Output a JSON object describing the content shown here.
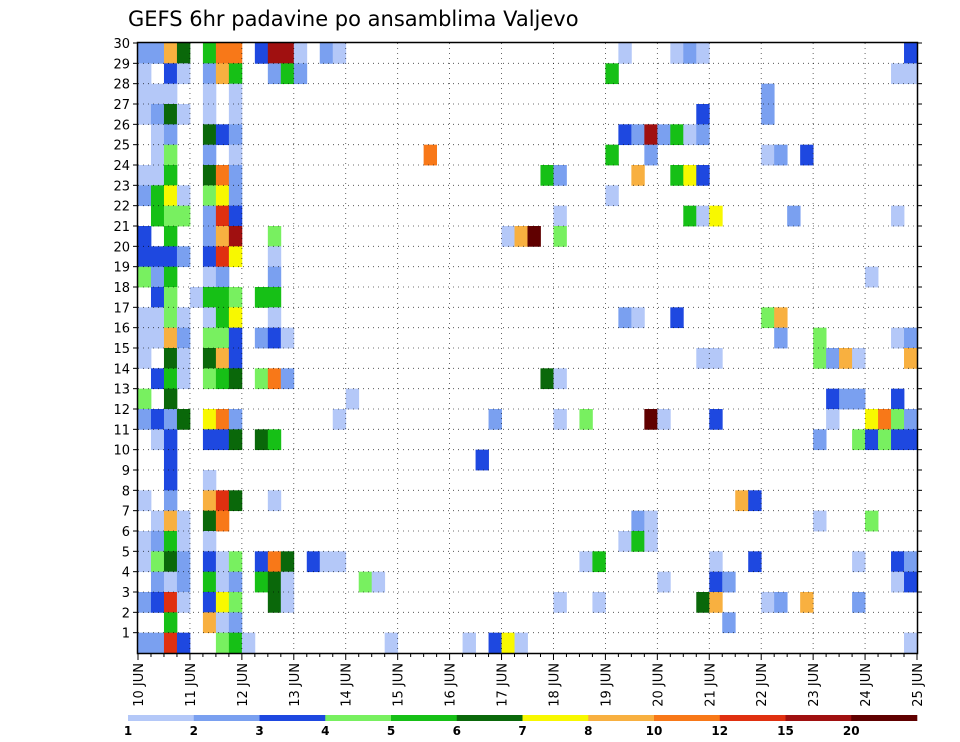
{
  "chart_data": {
    "type": "heatmap",
    "title": "GEFS 6hr padavine po ansamblima Valjevo",
    "xlabel": "",
    "ylabel": "",
    "x_ticks": [
      "10 JUN",
      "11 JUN",
      "12 JUN",
      "13 JUN",
      "14 JUN",
      "15 JUN",
      "16 JUN",
      "17 JUN",
      "18 JUN",
      "19 JUN",
      "20 JUN",
      "21 JUN",
      "22 JUN",
      "23 JUN",
      "24 JUN",
      "25 JUN"
    ],
    "y_ticks": [
      "1",
      "2",
      "3",
      "4",
      "5",
      "6",
      "7",
      "8",
      "9",
      "10",
      "11",
      "12",
      "13",
      "14",
      "15",
      "16",
      "17",
      "18",
      "19",
      "20",
      "21",
      "22",
      "23",
      "24",
      "25",
      "26",
      "27",
      "28",
      "29",
      "30"
    ],
    "xlim": [
      0,
      60
    ],
    "ylim": [
      0,
      30
    ],
    "grid": true,
    "legend": {
      "placement": "bottom",
      "labels": [
        "1",
        "2",
        "3",
        "4",
        "5",
        "6",
        "7",
        "8",
        "10",
        "12",
        "15",
        "20"
      ],
      "colors": [
        "#b4c8f8",
        "#7aa0f0",
        "#1e48e0",
        "#78f060",
        "#16c016",
        "#0a680a",
        "#f8f800",
        "#f8b040",
        "#f87818",
        "#e03010",
        "#a01010",
        "#600000"
      ]
    },
    "level_colors": {
      "1": "#b4c8f8",
      "2": "#7aa0f0",
      "3": "#1e48e0",
      "4": "#78f060",
      "5": "#16c016",
      "6": "#0a680a",
      "7": "#f8f800",
      "8": "#f8b040",
      "10": "#f87818",
      "12": "#e03010",
      "15": "#a01010",
      "20": "#600000"
    },
    "cells_note": "each cell: [time_step (6h, 0 = 10 JUN 00Z), member (1-30), precipitation level mm]",
    "cells": [
      [
        0,
        30,
        2
      ],
      [
        1,
        30,
        2
      ],
      [
        2,
        30,
        8
      ],
      [
        3,
        30,
        6
      ],
      [
        5,
        30,
        5
      ],
      [
        6,
        30,
        10
      ],
      [
        7,
        30,
        10
      ],
      [
        9,
        30,
        3
      ],
      [
        10,
        30,
        15
      ],
      [
        11,
        30,
        15
      ],
      [
        12,
        30,
        1
      ],
      [
        14,
        30,
        2
      ],
      [
        15,
        30,
        1
      ],
      [
        37,
        30,
        1
      ],
      [
        41,
        30,
        1
      ],
      [
        42,
        30,
        2
      ],
      [
        43,
        30,
        1
      ],
      [
        59,
        30,
        3
      ],
      [
        0,
        29,
        1
      ],
      [
        2,
        29,
        3
      ],
      [
        3,
        29,
        1
      ],
      [
        5,
        29,
        2
      ],
      [
        6,
        29,
        8
      ],
      [
        7,
        29,
        5
      ],
      [
        10,
        29,
        2
      ],
      [
        11,
        29,
        5
      ],
      [
        12,
        29,
        2
      ],
      [
        36,
        29,
        5
      ],
      [
        58,
        29,
        1
      ],
      [
        59,
        29,
        1
      ],
      [
        0,
        28,
        1
      ],
      [
        1,
        28,
        1
      ],
      [
        2,
        28,
        1
      ],
      [
        5,
        28,
        1
      ],
      [
        7,
        28,
        1
      ],
      [
        48,
        28,
        2
      ],
      [
        0,
        27,
        1
      ],
      [
        1,
        27,
        2
      ],
      [
        2,
        27,
        6
      ],
      [
        3,
        27,
        1
      ],
      [
        5,
        27,
        1
      ],
      [
        7,
        27,
        1
      ],
      [
        43,
        27,
        3
      ],
      [
        48,
        27,
        2
      ],
      [
        1,
        26,
        1
      ],
      [
        2,
        26,
        2
      ],
      [
        5,
        26,
        6
      ],
      [
        6,
        26,
        3
      ],
      [
        7,
        26,
        2
      ],
      [
        37,
        26,
        3
      ],
      [
        38,
        26,
        2
      ],
      [
        39,
        26,
        15
      ],
      [
        40,
        26,
        2
      ],
      [
        41,
        26,
        5
      ],
      [
        42,
        26,
        1
      ],
      [
        43,
        26,
        2
      ],
      [
        1,
        25,
        1
      ],
      [
        2,
        25,
        4
      ],
      [
        5,
        25,
        2
      ],
      [
        7,
        25,
        1
      ],
      [
        22,
        25,
        10
      ],
      [
        36,
        25,
        5
      ],
      [
        39,
        25,
        2
      ],
      [
        48,
        25,
        1
      ],
      [
        49,
        25,
        2
      ],
      [
        51,
        25,
        3
      ],
      [
        0,
        24,
        1
      ],
      [
        1,
        24,
        1
      ],
      [
        2,
        24,
        5
      ],
      [
        5,
        24,
        6
      ],
      [
        6,
        24,
        10
      ],
      [
        7,
        24,
        2
      ],
      [
        31,
        24,
        5
      ],
      [
        32,
        24,
        2
      ],
      [
        38,
        24,
        8
      ],
      [
        41,
        24,
        5
      ],
      [
        42,
        24,
        7
      ],
      [
        43,
        24,
        3
      ],
      [
        0,
        23,
        2
      ],
      [
        1,
        23,
        5
      ],
      [
        2,
        23,
        7
      ],
      [
        3,
        23,
        1
      ],
      [
        5,
        23,
        4
      ],
      [
        6,
        23,
        7
      ],
      [
        7,
        23,
        2
      ],
      [
        36,
        23,
        1
      ],
      [
        1,
        22,
        5
      ],
      [
        2,
        22,
        4
      ],
      [
        3,
        22,
        4
      ],
      [
        5,
        22,
        2
      ],
      [
        6,
        22,
        12
      ],
      [
        7,
        22,
        3
      ],
      [
        32,
        22,
        1
      ],
      [
        42,
        22,
        5
      ],
      [
        43,
        22,
        1
      ],
      [
        44,
        22,
        7
      ],
      [
        50,
        22,
        2
      ],
      [
        58,
        22,
        1
      ],
      [
        0,
        21,
        3
      ],
      [
        2,
        21,
        5
      ],
      [
        5,
        21,
        2
      ],
      [
        6,
        21,
        8
      ],
      [
        7,
        21,
        15
      ],
      [
        10,
        21,
        4
      ],
      [
        28,
        21,
        1
      ],
      [
        29,
        21,
        8
      ],
      [
        30,
        21,
        20
      ],
      [
        32,
        21,
        4
      ],
      [
        0,
        20,
        3
      ],
      [
        1,
        20,
        3
      ],
      [
        2,
        20,
        3
      ],
      [
        3,
        20,
        2
      ],
      [
        5,
        20,
        3
      ],
      [
        6,
        20,
        12
      ],
      [
        7,
        20,
        7
      ],
      [
        10,
        20,
        1
      ],
      [
        0,
        19,
        4
      ],
      [
        1,
        19,
        2
      ],
      [
        2,
        19,
        5
      ],
      [
        5,
        19,
        1
      ],
      [
        6,
        19,
        2
      ],
      [
        10,
        19,
        2
      ],
      [
        56,
        19,
        1
      ],
      [
        1,
        18,
        3
      ],
      [
        2,
        18,
        4
      ],
      [
        4,
        18,
        1
      ],
      [
        5,
        18,
        5
      ],
      [
        6,
        18,
        5
      ],
      [
        7,
        18,
        4
      ],
      [
        9,
        18,
        5
      ],
      [
        10,
        18,
        5
      ],
      [
        0,
        17,
        1
      ],
      [
        1,
        17,
        1
      ],
      [
        2,
        17,
        4
      ],
      [
        3,
        17,
        1
      ],
      [
        5,
        17,
        1
      ],
      [
        6,
        17,
        5
      ],
      [
        7,
        17,
        7
      ],
      [
        10,
        17,
        1
      ],
      [
        37,
        17,
        2
      ],
      [
        38,
        17,
        1
      ],
      [
        41,
        17,
        3
      ],
      [
        48,
        17,
        4
      ],
      [
        49,
        17,
        8
      ],
      [
        0,
        16,
        1
      ],
      [
        1,
        16,
        1
      ],
      [
        2,
        16,
        8
      ],
      [
        3,
        16,
        2
      ],
      [
        5,
        16,
        4
      ],
      [
        6,
        16,
        4
      ],
      [
        7,
        16,
        3
      ],
      [
        9,
        16,
        2
      ],
      [
        10,
        16,
        3
      ],
      [
        11,
        16,
        1
      ],
      [
        49,
        16,
        2
      ],
      [
        52,
        16,
        4
      ],
      [
        58,
        16,
        1
      ],
      [
        59,
        16,
        2
      ],
      [
        0,
        15,
        1
      ],
      [
        2,
        15,
        6
      ],
      [
        3,
        15,
        1
      ],
      [
        5,
        15,
        6
      ],
      [
        6,
        15,
        8
      ],
      [
        7,
        15,
        3
      ],
      [
        43,
        15,
        1
      ],
      [
        44,
        15,
        1
      ],
      [
        52,
        15,
        4
      ],
      [
        53,
        15,
        2
      ],
      [
        54,
        15,
        8
      ],
      [
        55,
        15,
        1
      ],
      [
        59,
        15,
        8
      ],
      [
        1,
        14,
        3
      ],
      [
        2,
        14,
        5
      ],
      [
        3,
        14,
        1
      ],
      [
        5,
        14,
        4
      ],
      [
        6,
        14,
        5
      ],
      [
        7,
        14,
        6
      ],
      [
        9,
        14,
        4
      ],
      [
        10,
        14,
        10
      ],
      [
        11,
        14,
        2
      ],
      [
        31,
        14,
        6
      ],
      [
        32,
        14,
        1
      ],
      [
        0,
        13,
        4
      ],
      [
        2,
        13,
        6
      ],
      [
        16,
        13,
        1
      ],
      [
        53,
        13,
        3
      ],
      [
        54,
        13,
        2
      ],
      [
        55,
        13,
        2
      ],
      [
        58,
        13,
        3
      ],
      [
        0,
        12,
        2
      ],
      [
        1,
        12,
        3
      ],
      [
        2,
        12,
        2
      ],
      [
        3,
        12,
        6
      ],
      [
        5,
        12,
        7
      ],
      [
        6,
        12,
        10
      ],
      [
        7,
        12,
        2
      ],
      [
        15,
        12,
        1
      ],
      [
        27,
        12,
        2
      ],
      [
        32,
        12,
        1
      ],
      [
        34,
        12,
        4
      ],
      [
        39,
        12,
        20
      ],
      [
        40,
        12,
        1
      ],
      [
        44,
        12,
        3
      ],
      [
        53,
        12,
        1
      ],
      [
        56,
        12,
        7
      ],
      [
        57,
        12,
        10
      ],
      [
        58,
        12,
        4
      ],
      [
        59,
        12,
        2
      ],
      [
        1,
        11,
        1
      ],
      [
        2,
        11,
        3
      ],
      [
        5,
        11,
        3
      ],
      [
        6,
        11,
        3
      ],
      [
        7,
        11,
        6
      ],
      [
        9,
        11,
        6
      ],
      [
        10,
        11,
        5
      ],
      [
        52,
        11,
        2
      ],
      [
        55,
        11,
        4
      ],
      [
        56,
        11,
        3
      ],
      [
        57,
        11,
        4
      ],
      [
        58,
        11,
        3
      ],
      [
        59,
        11,
        3
      ],
      [
        2,
        10,
        3
      ],
      [
        26,
        10,
        3
      ],
      [
        2,
        9,
        3
      ],
      [
        5,
        9,
        1
      ],
      [
        0,
        8,
        1
      ],
      [
        2,
        8,
        2
      ],
      [
        5,
        8,
        8
      ],
      [
        6,
        8,
        12
      ],
      [
        7,
        8,
        6
      ],
      [
        10,
        8,
        1
      ],
      [
        46,
        8,
        8
      ],
      [
        47,
        8,
        3
      ],
      [
        1,
        7,
        1
      ],
      [
        2,
        7,
        8
      ],
      [
        3,
        7,
        1
      ],
      [
        5,
        7,
        6
      ],
      [
        6,
        7,
        10
      ],
      [
        38,
        7,
        2
      ],
      [
        39,
        7,
        1
      ],
      [
        52,
        7,
        1
      ],
      [
        56,
        7,
        4
      ],
      [
        0,
        6,
        1
      ],
      [
        1,
        6,
        2
      ],
      [
        2,
        6,
        5
      ],
      [
        3,
        6,
        1
      ],
      [
        5,
        6,
        1
      ],
      [
        37,
        6,
        1
      ],
      [
        38,
        6,
        5
      ],
      [
        39,
        6,
        1
      ],
      [
        0,
        5,
        1
      ],
      [
        1,
        5,
        4
      ],
      [
        2,
        5,
        6
      ],
      [
        3,
        5,
        2
      ],
      [
        5,
        5,
        3
      ],
      [
        6,
        5,
        1
      ],
      [
        7,
        5,
        4
      ],
      [
        9,
        5,
        3
      ],
      [
        10,
        5,
        10
      ],
      [
        11,
        5,
        6
      ],
      [
        13,
        5,
        3
      ],
      [
        14,
        5,
        1
      ],
      [
        15,
        5,
        1
      ],
      [
        34,
        5,
        1
      ],
      [
        35,
        5,
        5
      ],
      [
        44,
        5,
        1
      ],
      [
        47,
        5,
        3
      ],
      [
        55,
        5,
        1
      ],
      [
        58,
        5,
        3
      ],
      [
        59,
        5,
        2
      ],
      [
        1,
        4,
        2
      ],
      [
        2,
        4,
        1
      ],
      [
        3,
        4,
        2
      ],
      [
        5,
        4,
        5
      ],
      [
        6,
        4,
        1
      ],
      [
        7,
        4,
        2
      ],
      [
        9,
        4,
        5
      ],
      [
        10,
        4,
        6
      ],
      [
        11,
        4,
        1
      ],
      [
        17,
        4,
        4
      ],
      [
        18,
        4,
        1
      ],
      [
        40,
        4,
        1
      ],
      [
        44,
        4,
        3
      ],
      [
        45,
        4,
        2
      ],
      [
        58,
        4,
        1
      ],
      [
        59,
        4,
        3
      ],
      [
        0,
        3,
        2
      ],
      [
        1,
        3,
        3
      ],
      [
        2,
        3,
        12
      ],
      [
        3,
        3,
        1
      ],
      [
        5,
        3,
        3
      ],
      [
        6,
        3,
        7
      ],
      [
        7,
        3,
        4
      ],
      [
        10,
        3,
        6
      ],
      [
        11,
        3,
        1
      ],
      [
        32,
        3,
        1
      ],
      [
        35,
        3,
        1
      ],
      [
        43,
        3,
        6
      ],
      [
        44,
        3,
        8
      ],
      [
        48,
        3,
        1
      ],
      [
        49,
        3,
        2
      ],
      [
        51,
        3,
        8
      ],
      [
        55,
        3,
        2
      ],
      [
        2,
        2,
        5
      ],
      [
        5,
        2,
        8
      ],
      [
        6,
        2,
        1
      ],
      [
        7,
        2,
        2
      ],
      [
        45,
        2,
        2
      ],
      [
        0,
        1,
        2
      ],
      [
        1,
        1,
        2
      ],
      [
        2,
        1,
        12
      ],
      [
        3,
        1,
        3
      ],
      [
        6,
        1,
        4
      ],
      [
        7,
        1,
        5
      ],
      [
        8,
        1,
        1
      ],
      [
        19,
        1,
        1
      ],
      [
        25,
        1,
        1
      ],
      [
        27,
        1,
        3
      ],
      [
        28,
        1,
        7
      ],
      [
        29,
        1,
        1
      ],
      [
        59,
        1,
        1
      ]
    ]
  }
}
